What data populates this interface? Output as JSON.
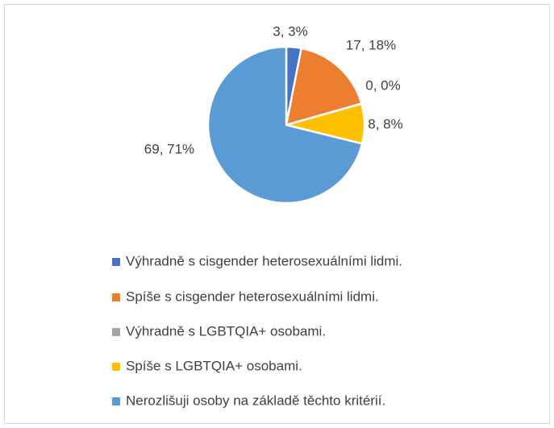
{
  "chart_data": {
    "type": "pie",
    "categories": [
      "Výhradně s cisgender heterosexuálními lidmi.",
      "Spíše s cisgender heterosexuálními lidmi.",
      "Výhradně s LGBTQIA+ osobami.",
      "Spíše s LGBTQIA+ osobami.",
      "Nerozlišuji osoby na základě těchto kritérií."
    ],
    "values": [
      3,
      17,
      0,
      8,
      69
    ],
    "value_labels": [
      "3, 3%",
      "17, 18%",
      "0, 0%",
      "8, 8%",
      "69, 71%"
    ],
    "colors": [
      "#4472c4",
      "#ed7d31",
      "#a5a5a5",
      "#ffc000",
      "#5b9bd5"
    ],
    "legend": "bottom"
  }
}
